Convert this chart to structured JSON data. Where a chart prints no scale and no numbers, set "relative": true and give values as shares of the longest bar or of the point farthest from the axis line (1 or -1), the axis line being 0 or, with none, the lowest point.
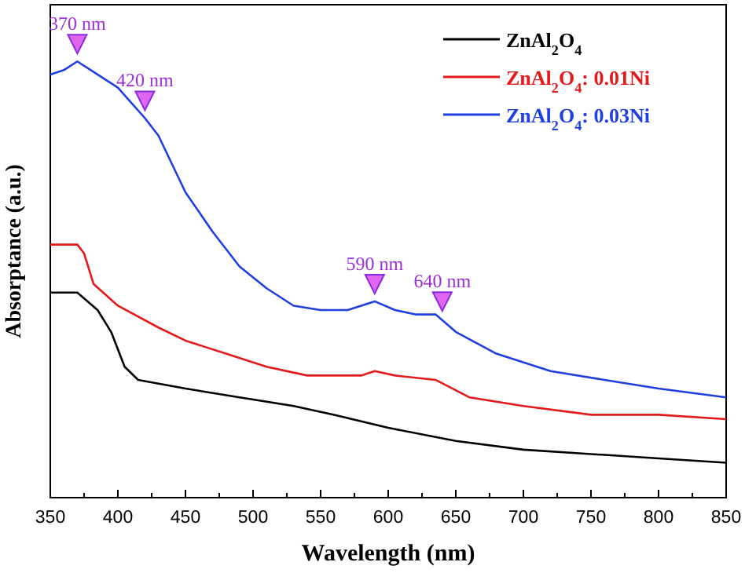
{
  "chart_data": {
    "type": "line",
    "relative": true,
    "xlabel": "Wavelength (nm)",
    "ylabel": "Absorptance (a.u.)",
    "xlim": [
      350,
      850
    ],
    "xticks": [
      350,
      {
        "value": 375,
        "label": null
      },
      400,
      {
        "value": 425,
        "label": null
      },
      450,
      {
        "value": 475,
        "label": null
      },
      500,
      {
        "value": 525,
        "label": null
      },
      550,
      {
        "value": 575,
        "label": null
      },
      600,
      {
        "value": 625,
        "label": null
      },
      650,
      {
        "value": 675,
        "label": null
      },
      700,
      {
        "value": 725,
        "label": null
      },
      750,
      {
        "value": 775,
        "label": null
      },
      800,
      {
        "value": 825,
        "label": null
      },
      850
    ],
    "grid": false,
    "legend": "top right",
    "line_style": "solid",
    "marker": "none",
    "series": [
      {
        "name": "ZnAl$_{2}$O$_{4}$",
        "color": "#000000",
        "x": [
          350,
          370,
          385,
          395,
          405,
          415,
          450,
          490,
          530,
          560,
          600,
          650,
          700,
          750,
          800,
          850
        ],
        "values": [
          0.47,
          0.47,
          0.43,
          0.38,
          0.3,
          0.27,
          0.25,
          0.23,
          0.21,
          0.19,
          0.16,
          0.13,
          0.11,
          0.1,
          0.09,
          0.08
        ]
      },
      {
        "name": "ZnAl$_{2}$O$_{4}$: 0.01Ni",
        "color": "#e31a1c",
        "x": [
          350,
          370,
          375,
          382,
          400,
          430,
          450,
          480,
          510,
          540,
          580,
          590,
          605,
          635,
          660,
          700,
          750,
          800,
          850
        ],
        "values": [
          0.58,
          0.58,
          0.56,
          0.49,
          0.44,
          0.39,
          0.36,
          0.33,
          0.3,
          0.28,
          0.28,
          0.29,
          0.28,
          0.27,
          0.23,
          0.21,
          0.19,
          0.19,
          0.18
        ]
      },
      {
        "name": "ZnAl$_{2}$O$_{4}$: 0.03Ni",
        "color": "#1f3fe0",
        "x": [
          350,
          360,
          370,
          380,
          400,
          420,
          430,
          450,
          470,
          490,
          510,
          530,
          550,
          570,
          590,
          605,
          620,
          635,
          650,
          680,
          720,
          760,
          800,
          850
        ],
        "values": [
          0.97,
          0.98,
          1.0,
          0.98,
          0.94,
          0.87,
          0.83,
          0.7,
          0.61,
          0.53,
          0.48,
          0.44,
          0.43,
          0.43,
          0.45,
          0.43,
          0.42,
          0.42,
          0.38,
          0.33,
          0.29,
          0.27,
          0.25,
          0.23
        ]
      }
    ],
    "annotations": [
      {
        "text": "370 nm",
        "x": 370,
        "y": 1.0
      },
      {
        "text": "420 nm",
        "x": 420,
        "y": 0.87
      },
      {
        "text": "590 nm",
        "x": 590,
        "y": 0.45
      },
      {
        "text": "640 nm",
        "x": 640,
        "y": 0.41
      }
    ]
  }
}
